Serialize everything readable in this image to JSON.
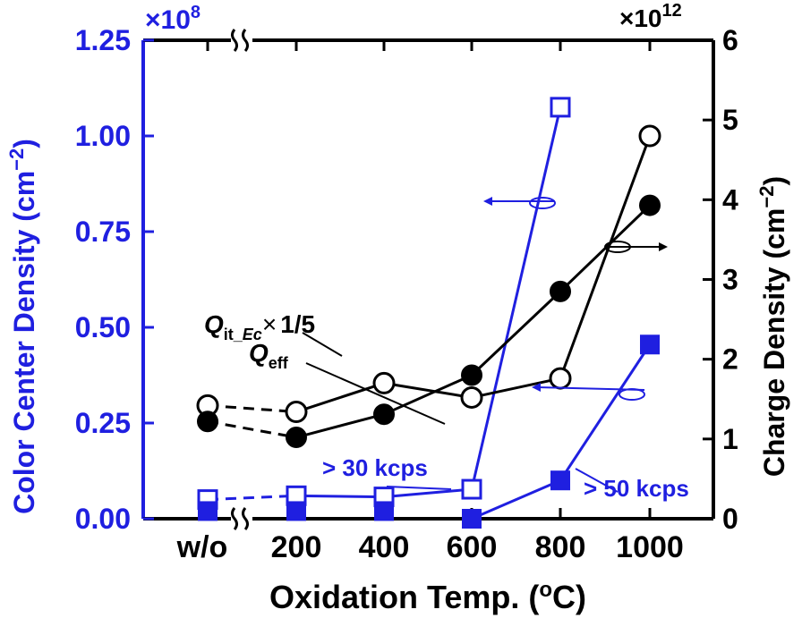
{
  "chart_data": {
    "type": "line",
    "xlabel_main": "Oxidation Temp. (",
    "xlabel_deg": "o",
    "xlabel_end": "C)",
    "categories": [
      "w/o",
      "200",
      "400",
      "600",
      "800",
      "1000"
    ],
    "left_axis": {
      "label_main": "Color Center Density (cm",
      "label_exp": "−2",
      "label_end": ")",
      "multiplier": "×10",
      "multiplier_exp": "8",
      "ylim": [
        0,
        1.25
      ],
      "ticks": [
        "0.00",
        "0.25",
        "0.50",
        "0.75",
        "1.00",
        "1.25"
      ],
      "tick_values": [
        0,
        0.25,
        0.5,
        0.75,
        1.0,
        1.25
      ],
      "color": "#1f1fe0"
    },
    "right_axis": {
      "label_main": "Charge Density (cm",
      "label_exp": "−2",
      "label_end": ")",
      "multiplier": "×10",
      "multiplier_exp": "12",
      "ylim": [
        0,
        6
      ],
      "ticks": [
        "0",
        "1",
        "2",
        "3",
        "4",
        "5",
        "6"
      ],
      "tick_values": [
        0,
        1,
        2,
        3,
        4,
        5,
        6
      ],
      "color": "#000000"
    },
    "series": [
      {
        "name": "> 30 kcps",
        "axis": "left",
        "color": "#1f1fe0",
        "marker": "open-square",
        "values": [
          0.05,
          0.06,
          0.057,
          0.077,
          1.075,
          null
        ],
        "dashed_first_segment": true
      },
      {
        "name": "> 50 kcps",
        "axis": "left",
        "color": "#1f1fe0",
        "marker": "filled-square",
        "values": [
          0.02,
          0.02,
          0.02,
          0.0,
          0.1,
          0.455
        ],
        "connect_from": 3
      },
      {
        "name": "Q_it_Ec × 1/5",
        "axis": "right",
        "color": "#000000",
        "marker": "open-circle",
        "values": [
          1.42,
          1.34,
          1.7,
          1.52,
          1.76,
          4.8
        ],
        "dashed_first_segment": true
      },
      {
        "name": "Q_eff",
        "axis": "right",
        "color": "#000000",
        "marker": "filled-circle",
        "values": [
          1.22,
          1.02,
          1.31,
          1.8,
          2.85,
          3.93
        ],
        "dashed_first_segment": true
      }
    ],
    "annotations": {
      "q_it_main": "Q",
      "q_it_sub": "it_",
      "q_it_sub_italic": "Ec",
      "q_it_suffix": "×",
      "q_it_factor": "1/5",
      "q_eff_main": "Q",
      "q_eff_sub": "eff",
      "label_30": "> 30 kcps",
      "label_50": "> 50 kcps"
    }
  }
}
